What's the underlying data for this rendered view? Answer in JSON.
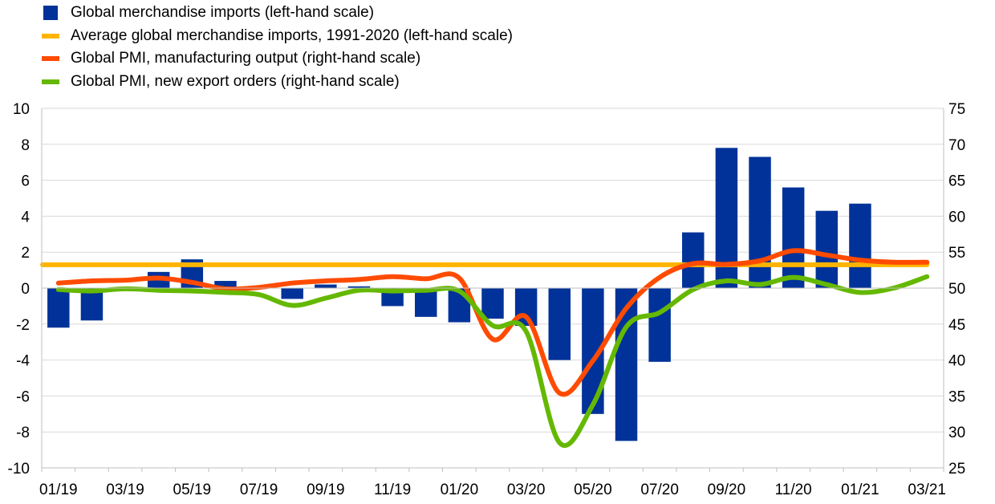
{
  "chart_data": {
    "type": "bar+line",
    "categories": [
      "01/19",
      "02/19",
      "03/19",
      "04/19",
      "05/19",
      "06/19",
      "07/19",
      "08/19",
      "09/19",
      "10/19",
      "11/19",
      "12/19",
      "01/20",
      "02/20",
      "03/20",
      "04/20",
      "05/20",
      "06/20",
      "07/20",
      "08/20",
      "09/20",
      "10/20",
      "11/20",
      "12/20",
      "01/21",
      "02/21",
      "03/21"
    ],
    "x_tick_labels": [
      "01/19",
      "03/19",
      "05/19",
      "07/19",
      "09/19",
      "11/19",
      "01/20",
      "03/20",
      "05/20",
      "07/20",
      "09/20",
      "11/20",
      "01/21",
      "03/21"
    ],
    "left_axis": {
      "ylim": [
        -10,
        10
      ],
      "ticks": [
        "-10",
        "-8",
        "-6",
        "-4",
        "-2",
        "0",
        "2",
        "4",
        "6",
        "8",
        "10"
      ]
    },
    "right_axis": {
      "ylim": [
        25,
        75
      ],
      "ticks": [
        "25",
        "30",
        "35",
        "40",
        "45",
        "50",
        "55",
        "60",
        "65",
        "70",
        "75"
      ]
    },
    "grid": "horizontal",
    "legend_position": "top-left",
    "series": [
      {
        "name": "Global merchandise imports (left-hand scale)",
        "type": "bar",
        "axis": "left",
        "color": "#003299",
        "values": [
          -2.2,
          -1.8,
          null,
          0.9,
          1.6,
          0.4,
          null,
          -0.6,
          0.2,
          0.1,
          -1.0,
          -1.6,
          -1.9,
          -1.7,
          -2.1,
          -4.0,
          -7.0,
          -8.5,
          -4.1,
          3.1,
          7.8,
          7.3,
          5.6,
          4.3,
          4.7,
          null,
          null
        ]
      },
      {
        "name": "Average global merchandise imports, 1991-2020 (left-hand scale)",
        "type": "line",
        "axis": "left",
        "color": "#FFB400",
        "values": [
          1.3,
          1.3,
          1.3,
          1.3,
          1.3,
          1.3,
          1.3,
          1.3,
          1.3,
          1.3,
          1.3,
          1.3,
          1.3,
          1.3,
          1.3,
          1.3,
          1.3,
          1.3,
          1.3,
          1.3,
          1.3,
          1.3,
          1.3,
          1.3,
          1.3,
          1.3,
          1.3
        ]
      },
      {
        "name": "Global PMI, manufacturing output (right-hand scale)",
        "type": "line",
        "axis": "right",
        "color": "#FF4B00",
        "values": [
          50.7,
          51.0,
          51.1,
          51.4,
          50.8,
          49.9,
          50.1,
          50.7,
          51.0,
          51.2,
          51.6,
          51.3,
          51.4,
          42.9,
          46.0,
          35.4,
          39.9,
          47.2,
          51.5,
          53.4,
          53.3,
          53.8,
          55.2,
          54.6,
          53.9,
          53.6,
          53.6
        ]
      },
      {
        "name": "Global PMI, new export orders (right-hand scale)",
        "type": "line",
        "axis": "right",
        "color": "#65B800",
        "values": [
          49.8,
          49.6,
          49.9,
          49.7,
          49.6,
          49.4,
          49.1,
          47.6,
          48.6,
          49.7,
          49.6,
          49.7,
          49.6,
          44.8,
          44.0,
          28.5,
          33.8,
          44.6,
          46.6,
          49.8,
          51.0,
          50.5,
          51.5,
          50.5,
          49.4,
          50.0,
          51.6
        ]
      }
    ]
  }
}
